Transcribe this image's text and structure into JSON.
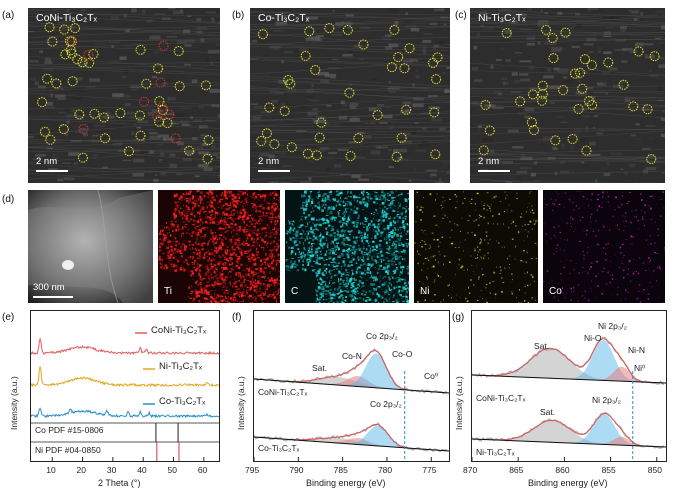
{
  "panels": {
    "a": {
      "label": "(a)",
      "title": "CoNi-Ti₃C₂Tₓ",
      "scale": "2 nm"
    },
    "b": {
      "label": "(b)",
      "title": "Co-Ti₃C₂Tₓ",
      "scale": "2 nm"
    },
    "c": {
      "label": "(c)",
      "title": "Ni-Ti₃C₂Tₓ",
      "scale": "2 nm"
    },
    "d": {
      "label": "(d)",
      "scale": "300 nm",
      "maps": [
        "Ti",
        "C",
        "Ni",
        "Co"
      ]
    },
    "e": {
      "label": "(e)"
    },
    "f": {
      "label": "(f)",
      "title": "Co 2p"
    },
    "g": {
      "label": "(g)",
      "title": "Ni 2p"
    }
  },
  "colors": {
    "red": "#e06060",
    "gold": "#e0a820",
    "blue": "#2a8fc8",
    "circle_yellow": "#e8e830",
    "circle_red": "#e03030",
    "fit_blue": "#5bb8e8",
    "fit_pink": "#e87878",
    "sat_gray": "#b0b0b0"
  },
  "chart_data": [
    {
      "panel": "e",
      "type": "line",
      "xlabel": "2 Theta (°)",
      "ylabel": "Intensity (a.u.)",
      "xticks": [
        "10",
        "20",
        "30",
        "40",
        "50",
        "60"
      ],
      "xlim": [
        3,
        65
      ],
      "series": [
        {
          "name": "CoNi-Ti₃C₂Tₓ",
          "color": "#e06060"
        },
        {
          "name": "Ni-Ti₃C₂Tₓ",
          "color": "#e0a820"
        },
        {
          "name": "Co-Ti₃C₂Tₓ",
          "color": "#2a8fc8"
        }
      ],
      "references": [
        {
          "name": "Co PDF #15-0806",
          "color": "#222222",
          "peaks": [
            44.2,
            51.5
          ]
        },
        {
          "name": "Ni PDF #04-0850",
          "color": "#e03030",
          "peaks": [
            44.5,
            51.8
          ]
        }
      ]
    },
    {
      "panel": "f",
      "type": "line",
      "xlabel": "Binding energy (eV)",
      "ylabel": "Intensity (a.u.)",
      "xticks": [
        "795",
        "790",
        "785",
        "780",
        "775"
      ],
      "xlim": [
        795,
        773
      ],
      "series": [
        {
          "name": "CoNi-Ti₃C₂Tₓ"
        },
        {
          "name": "Co-Ti₃C₂Tₓ"
        }
      ],
      "annotations": [
        "Co 2p₃/₂",
        "Co-N",
        "Co-O",
        "Sat.",
        "Co⁰",
        "Co 2p₃/₂"
      ],
      "reference_line": 778.0
    },
    {
      "panel": "g",
      "type": "line",
      "xlabel": "Binding energy (eV)",
      "ylabel": "Intensity (a.u.)",
      "xticks": [
        "870",
        "865",
        "860",
        "855",
        "850"
      ],
      "xlim": [
        870,
        849
      ],
      "series": [
        {
          "name": "CoNi-Ti₃C₂Tₓ"
        },
        {
          "name": "Ni-Ti₃C₂Tₓ"
        }
      ],
      "annotations": [
        "Ni 2p₃/₂",
        "Ni-O",
        "Sat.",
        "Ni-N",
        "Ni⁰",
        "Sat.",
        "Ni 2p₃/₂"
      ],
      "reference_line": 852.6
    }
  ]
}
